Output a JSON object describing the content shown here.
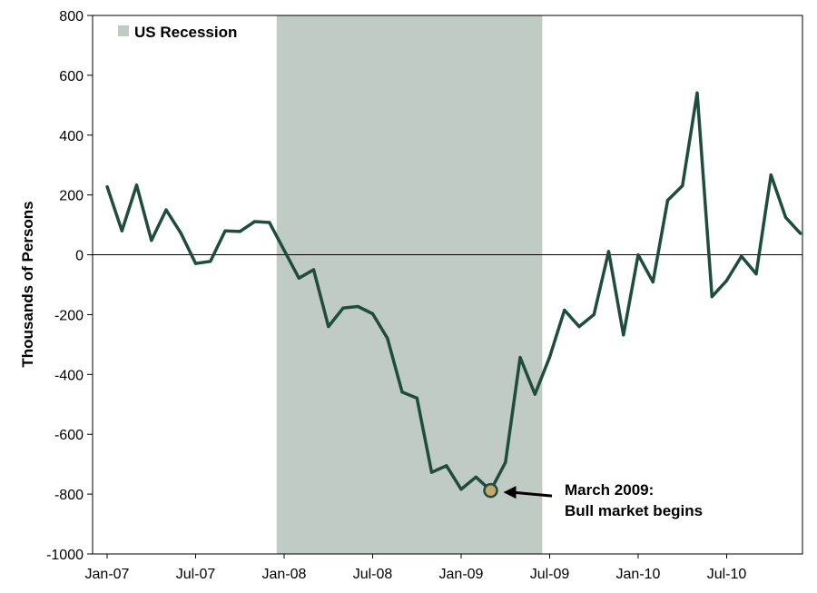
{
  "chart_data": {
    "type": "line",
    "title": "",
    "xlabel": "",
    "ylabel": "Thousands of Persons",
    "ylim": [
      -1000,
      800
    ],
    "yticks": [
      "800",
      "600",
      "400",
      "200",
      "0",
      "-200",
      "-400",
      "-600",
      "-800",
      "-1000"
    ],
    "ytick_values": [
      800,
      600,
      400,
      200,
      0,
      -200,
      -400,
      -600,
      -800,
      -1000
    ],
    "xticks": [
      "Jan-07",
      "Jul-07",
      "Jan-08",
      "Jul-08",
      "Jan-09",
      "Jul-09",
      "Jan-10",
      "Jul-10"
    ],
    "xtick_month_index": [
      0,
      6,
      12,
      18,
      24,
      30,
      36,
      42
    ],
    "grid": false,
    "legend": {
      "placement": "top-left",
      "entries": [
        "US Recession"
      ]
    },
    "recession": {
      "label": "US Recession",
      "start_month_index": 11,
      "end_month_index": 29.5,
      "color": "#c0cbc5"
    },
    "line_color": "#1f4d3c",
    "marker_color": "#c9a66b",
    "series": [
      {
        "start": "Jan-07",
        "values": [
          228,
          80,
          233,
          48,
          150,
          72,
          -29,
          -22,
          80,
          78,
          111,
          108,
          15,
          -78,
          -50,
          -240,
          -178,
          -173,
          -197,
          -279,
          -459,
          -479,
          -727,
          -705,
          -784,
          -743,
          -788,
          -694,
          -343,
          -466,
          -342,
          -185,
          -240,
          -200,
          11,
          -268,
          0,
          -91,
          182,
          231,
          541,
          -140,
          -86,
          -5,
          -64,
          267,
          125,
          71
        ]
      }
    ],
    "annotation": {
      "month_index": 26,
      "value": -788,
      "lines": [
        "March 2009:",
        "Bull market begins"
      ]
    }
  }
}
